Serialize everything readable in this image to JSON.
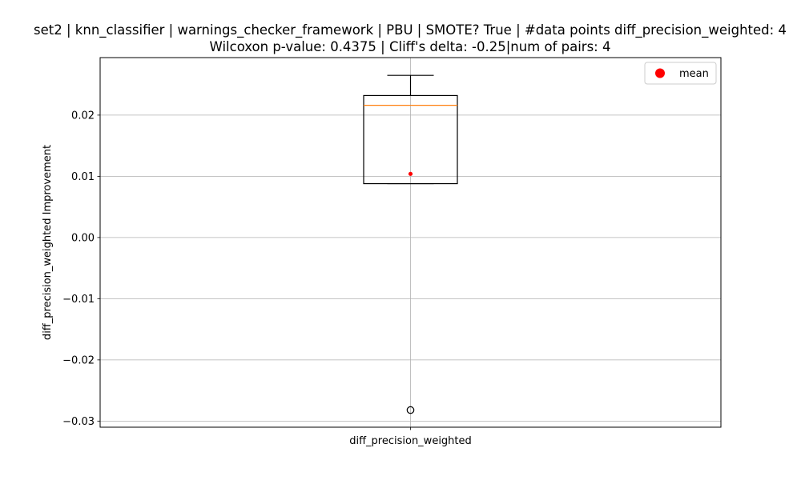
{
  "chart_data": {
    "type": "box",
    "title_lines": [
      "set2 | knn_classifier | warnings_checker_framework | PBU | SMOTE? True | #data points diff_precision_weighted: 4",
      "Wilcoxon p-value: 0.4375 | Cliff's delta: -0.25|num of pairs: 4"
    ],
    "xlabel": "",
    "ylabel": "diff_precision_weighted Improvement",
    "categories": [
      "diff_precision_weighted"
    ],
    "ylim": [
      -0.031,
      0.0294
    ],
    "yticks": [
      {
        "value": 0.02,
        "label": "0.02"
      },
      {
        "value": 0.01,
        "label": "0.01"
      },
      {
        "value": 0.0,
        "label": "0.00"
      },
      {
        "value": -0.01,
        "label": "−0.01"
      },
      {
        "value": -0.02,
        "label": "−0.02"
      },
      {
        "value": -0.03,
        "label": "−0.03"
      }
    ],
    "grid": true,
    "box": {
      "category": "diff_precision_weighted",
      "whisker_low": 0.0088,
      "q1": 0.0088,
      "median": 0.0216,
      "q3": 0.0232,
      "whisker_high": 0.0265,
      "mean": 0.0104,
      "outliers": [
        -0.0282
      ]
    },
    "legend": {
      "position": "upper right",
      "entries": [
        {
          "label": "mean",
          "marker": "circle",
          "color": "#ff0000"
        }
      ]
    },
    "colors": {
      "box": "#000000",
      "median": "#ff7f0e",
      "mean": "#ff0000",
      "grid": "#b0b0b0"
    }
  }
}
